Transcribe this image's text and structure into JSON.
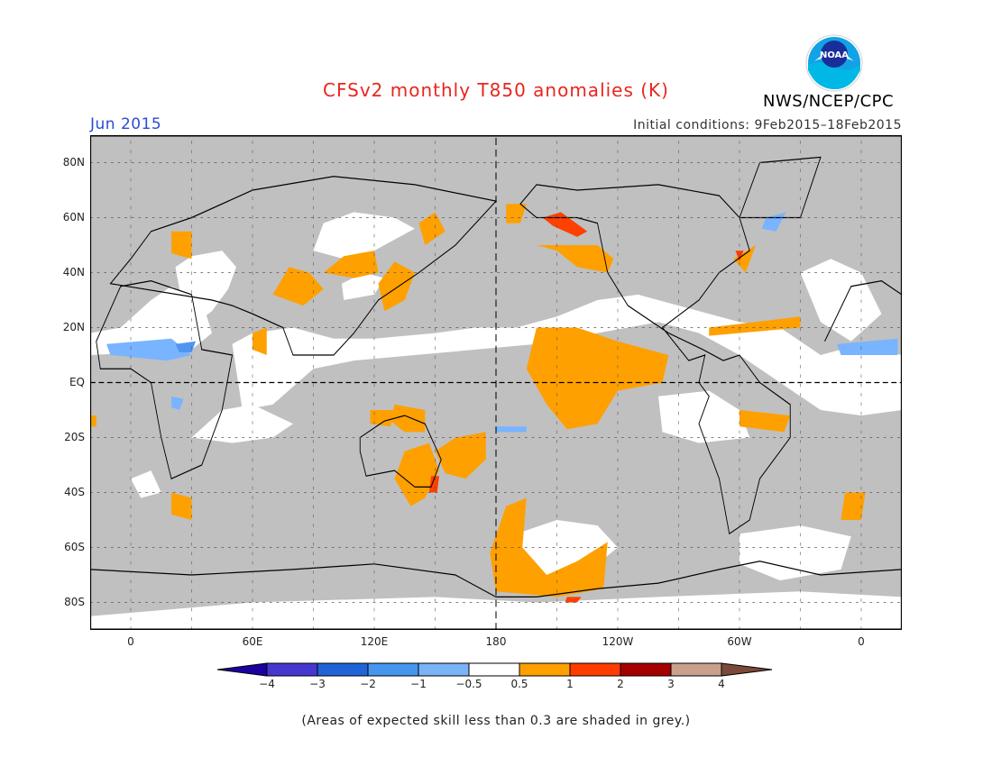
{
  "title": "CFSv2 monthly T850 anomalies (K)",
  "organization": "NWS/NCEP/CPC",
  "logo_text": "NOAA",
  "forecast_month": "Jun 2015",
  "initial_conditions": "Initial conditions: 9Feb2015–18Feb2015",
  "footnote": "(Areas of expected skill less than 0.3 are shaded in grey.)",
  "map": {
    "projection": "cylindrical equidistant",
    "lon_range": [
      -20,
      380
    ],
    "lat_range": [
      -90,
      90
    ],
    "lat_ticks": [
      {
        "label": "80N",
        "lat": 80
      },
      {
        "label": "60N",
        "lat": 60
      },
      {
        "label": "40N",
        "lat": 40
      },
      {
        "label": "20N",
        "lat": 20
      },
      {
        "label": "EQ",
        "lat": 0
      },
      {
        "label": "20S",
        "lat": -20
      },
      {
        "label": "40S",
        "lat": -40
      },
      {
        "label": "60S",
        "lat": -60
      },
      {
        "label": "80S",
        "lat": -80
      }
    ],
    "lon_ticks": [
      {
        "label": "0",
        "lon": 0
      },
      {
        "label": "60E",
        "lon": 60
      },
      {
        "label": "120E",
        "lon": 120
      },
      {
        "label": "180",
        "lon": 180
      },
      {
        "label": "120W",
        "lon": 240
      },
      {
        "label": "60W",
        "lon": 300
      },
      {
        "label": "0",
        "lon": 360
      }
    ],
    "colors": {
      "skill_grey": "#c0c0c0",
      "plus_0_5_to_1": "#fea000",
      "plus_1_to_2": "#fe4000",
      "minus_0_5_to_1": "#78b4ff",
      "minus_1_to_2": "#5096f0",
      "coastline": "#000000"
    }
  },
  "colorbar": {
    "labels": [
      "−4",
      "−3",
      "−2",
      "−1",
      "−0.5",
      "0.5",
      "1",
      "2",
      "3",
      "4"
    ],
    "colors": [
      "#1c00a0",
      "#4638cf",
      "#1f64d6",
      "#4696ee",
      "#7ab4f6",
      "#ffffff",
      "#fea000",
      "#fe3c00",
      "#a50000",
      "#c8a08c",
      "#7a4a3a"
    ]
  }
}
